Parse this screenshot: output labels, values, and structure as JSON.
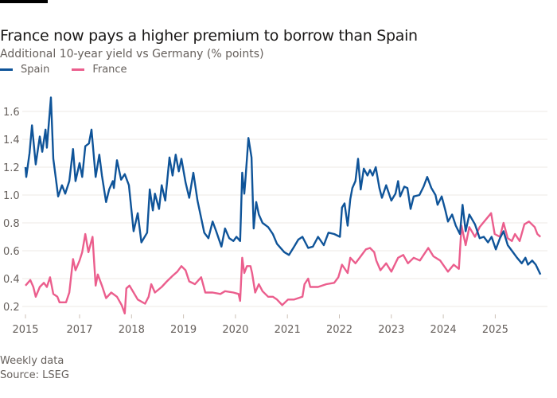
{
  "title": "France now pays a higher premium to borrow than Spain",
  "subtitle": "Additional 10-year yield vs Germany (% points)",
  "footer": {
    "note": "Weekly data",
    "source": "Source: LSEG"
  },
  "chart_data": {
    "type": "line",
    "title": "France now pays a higher premium to borrow than Spain",
    "subtitle": "Additional 10-year yield vs Germany (% points)",
    "ylim": [
      0.1,
      1.75
    ],
    "yticks": [
      0.2,
      0.4,
      0.6,
      0.8,
      1.0,
      1.2,
      1.4,
      1.6
    ],
    "ytick_labels": [
      "0.2",
      "0.4",
      "0.6",
      "0.8",
      "1.0",
      "1.2",
      "1.4",
      "1.6"
    ],
    "xticks": [
      {
        "label": "2015",
        "value": 2015
      },
      {
        "label": "2017",
        "value": 2017
      },
      {
        "label": "2018",
        "value": 2018
      },
      {
        "label": "2019",
        "value": 2019
      },
      {
        "label": "2020",
        "value": 2020
      },
      {
        "label": "2021",
        "value": 2021
      },
      {
        "label": "2022",
        "value": 2022
      },
      {
        "label": "2023",
        "value": 2023
      },
      {
        "label": "2024",
        "value": 2024
      },
      {
        "label": "2025",
        "value": 2025
      }
    ],
    "grid": true,
    "legend": "top-left",
    "series": [
      {
        "name": "Spain",
        "color": "#0f5499",
        "x": [
          2015.0,
          2015.03,
          2015.15,
          2015.24,
          2015.38,
          2015.53,
          2015.62,
          2015.74,
          2015.79,
          2015.94,
          2016.03,
          2016.21,
          2016.35,
          2016.47,
          2016.62,
          2016.76,
          2016.85,
          2017.0,
          2017.05,
          2017.11,
          2017.18,
          2017.23,
          2017.31,
          2017.38,
          2017.43,
          2017.51,
          2017.57,
          2017.64,
          2017.66,
          2017.72,
          2017.8,
          2017.87,
          2017.95,
          2018.04,
          2018.12,
          2018.19,
          2018.3,
          2018.35,
          2018.41,
          2018.45,
          2018.53,
          2018.58,
          2018.65,
          2018.73,
          2018.79,
          2018.85,
          2018.91,
          2018.96,
          2019.04,
          2019.11,
          2019.19,
          2019.27,
          2019.4,
          2019.48,
          2019.56,
          2019.63,
          2019.73,
          2019.8,
          2019.88,
          2019.96,
          2020.02,
          2020.09,
          2020.13,
          2020.17,
          2020.19,
          2020.25,
          2020.31,
          2020.35,
          2020.4,
          2020.45,
          2020.52,
          2020.63,
          2020.72,
          2020.8,
          2020.94,
          2021.03,
          2021.13,
          2021.21,
          2021.29,
          2021.4,
          2021.49,
          2021.59,
          2021.7,
          2021.79,
          2021.9,
          2022.01,
          2022.05,
          2022.1,
          2022.16,
          2022.21,
          2022.25,
          2022.31,
          2022.36,
          2022.41,
          2022.47,
          2022.54,
          2022.59,
          2022.64,
          2022.7,
          2022.77,
          2022.82,
          2022.9,
          2023.0,
          2023.08,
          2023.13,
          2023.17,
          2023.25,
          2023.31,
          2023.37,
          2023.43,
          2023.54,
          2023.62,
          2023.69,
          2023.77,
          2023.85,
          2023.89,
          2023.97,
          2024.04,
          2024.09,
          2024.17,
          2024.24,
          2024.32,
          2024.37,
          2024.43,
          2024.5,
          2024.61,
          2024.7,
          2024.78,
          2024.86,
          2024.93,
          2025.01,
          2025.09,
          2025.16,
          2025.24,
          2025.32,
          2025.42,
          2025.51,
          2025.58,
          2025.63,
          2025.71,
          2025.78,
          2025.87
        ],
        "values": [
          1.2,
          1.13,
          1.3,
          1.5,
          1.22,
          1.42,
          1.31,
          1.47,
          1.34,
          1.7,
          1.26,
          0.99,
          1.07,
          1.01,
          1.1,
          1.33,
          1.1,
          1.23,
          1.13,
          1.35,
          1.37,
          1.47,
          1.13,
          1.29,
          1.14,
          0.95,
          1.04,
          1.1,
          1.05,
          1.25,
          1.11,
          1.15,
          1.07,
          0.74,
          0.87,
          0.66,
          0.73,
          1.04,
          0.89,
          1.01,
          0.9,
          1.07,
          0.96,
          1.27,
          1.14,
          1.29,
          1.17,
          1.26,
          1.09,
          0.98,
          1.16,
          0.96,
          0.73,
          0.69,
          0.81,
          0.74,
          0.63,
          0.76,
          0.69,
          0.67,
          0.7,
          0.67,
          1.16,
          1.01,
          1.1,
          1.41,
          1.27,
          0.76,
          0.95,
          0.86,
          0.8,
          0.77,
          0.72,
          0.65,
          0.59,
          0.57,
          0.63,
          0.68,
          0.7,
          0.62,
          0.63,
          0.7,
          0.64,
          0.73,
          0.72,
          0.7,
          0.91,
          0.94,
          0.78,
          0.97,
          1.05,
          1.1,
          1.26,
          1.04,
          1.19,
          1.14,
          1.18,
          1.14,
          1.2,
          1.05,
          0.98,
          1.07,
          0.96,
          1.01,
          1.1,
          0.99,
          1.06,
          1.05,
          0.9,
          0.99,
          1.0,
          1.06,
          1.13,
          1.05,
          1.0,
          0.93,
          0.99,
          0.89,
          0.81,
          0.86,
          0.78,
          0.72,
          0.93,
          0.74,
          0.86,
          0.79,
          0.69,
          0.7,
          0.66,
          0.7,
          0.61,
          0.69,
          0.74,
          0.64,
          0.6,
          0.55,
          0.51,
          0.55,
          0.5,
          0.53,
          0.5,
          0.43
        ]
      },
      {
        "name": "France",
        "color": "#eb5e8d",
        "x": [
          2015.0,
          2015.18,
          2015.29,
          2015.38,
          2015.53,
          2015.68,
          2015.79,
          2015.91,
          2016.03,
          2016.18,
          2016.26,
          2016.5,
          2016.62,
          2016.76,
          2016.85,
          2017.0,
          2017.05,
          2017.11,
          2017.17,
          2017.25,
          2017.31,
          2017.35,
          2017.43,
          2017.51,
          2017.61,
          2017.72,
          2017.81,
          2017.87,
          2017.9,
          2017.96,
          2018.04,
          2018.12,
          2018.26,
          2018.33,
          2018.38,
          2018.45,
          2018.58,
          2018.68,
          2018.79,
          2018.88,
          2018.96,
          2019.04,
          2019.11,
          2019.22,
          2019.34,
          2019.42,
          2019.56,
          2019.71,
          2019.8,
          2019.96,
          2020.06,
          2020.09,
          2020.13,
          2020.17,
          2020.22,
          2020.29,
          2020.32,
          2020.38,
          2020.45,
          2020.52,
          2020.63,
          2020.72,
          2020.8,
          2020.9,
          2021.01,
          2021.13,
          2021.29,
          2021.33,
          2021.4,
          2021.44,
          2021.59,
          2021.75,
          2021.9,
          2021.98,
          2022.05,
          2022.16,
          2022.21,
          2022.31,
          2022.41,
          2022.51,
          2022.59,
          2022.67,
          2022.71,
          2022.79,
          2022.9,
          2023.0,
          2023.13,
          2023.23,
          2023.32,
          2023.43,
          2023.55,
          2023.71,
          2023.81,
          2023.94,
          2024.09,
          2024.2,
          2024.3,
          2024.35,
          2024.43,
          2024.5,
          2024.61,
          2024.7,
          2024.81,
          2024.92,
          2024.99,
          2025.09,
          2025.16,
          2025.24,
          2025.32,
          2025.38,
          2025.47,
          2025.56,
          2025.65,
          2025.76,
          2025.81,
          2025.87
        ],
        "values": [
          0.35,
          0.39,
          0.34,
          0.27,
          0.34,
          0.37,
          0.34,
          0.41,
          0.29,
          0.27,
          0.23,
          0.23,
          0.3,
          0.54,
          0.46,
          0.53,
          0.59,
          0.72,
          0.59,
          0.7,
          0.35,
          0.43,
          0.35,
          0.26,
          0.3,
          0.27,
          0.21,
          0.15,
          0.33,
          0.35,
          0.3,
          0.25,
          0.22,
          0.27,
          0.36,
          0.3,
          0.34,
          0.38,
          0.42,
          0.45,
          0.49,
          0.46,
          0.38,
          0.36,
          0.41,
          0.3,
          0.3,
          0.29,
          0.31,
          0.3,
          0.29,
          0.24,
          0.55,
          0.44,
          0.49,
          0.49,
          0.44,
          0.3,
          0.36,
          0.31,
          0.27,
          0.27,
          0.25,
          0.21,
          0.25,
          0.25,
          0.27,
          0.36,
          0.4,
          0.34,
          0.34,
          0.36,
          0.37,
          0.41,
          0.5,
          0.44,
          0.55,
          0.51,
          0.56,
          0.61,
          0.62,
          0.59,
          0.53,
          0.46,
          0.51,
          0.45,
          0.55,
          0.57,
          0.51,
          0.55,
          0.53,
          0.62,
          0.56,
          0.53,
          0.45,
          0.5,
          0.47,
          0.78,
          0.64,
          0.77,
          0.7,
          0.77,
          0.82,
          0.87,
          0.72,
          0.7,
          0.8,
          0.69,
          0.67,
          0.72,
          0.67,
          0.79,
          0.81,
          0.77,
          0.72,
          0.7
        ]
      }
    ]
  }
}
